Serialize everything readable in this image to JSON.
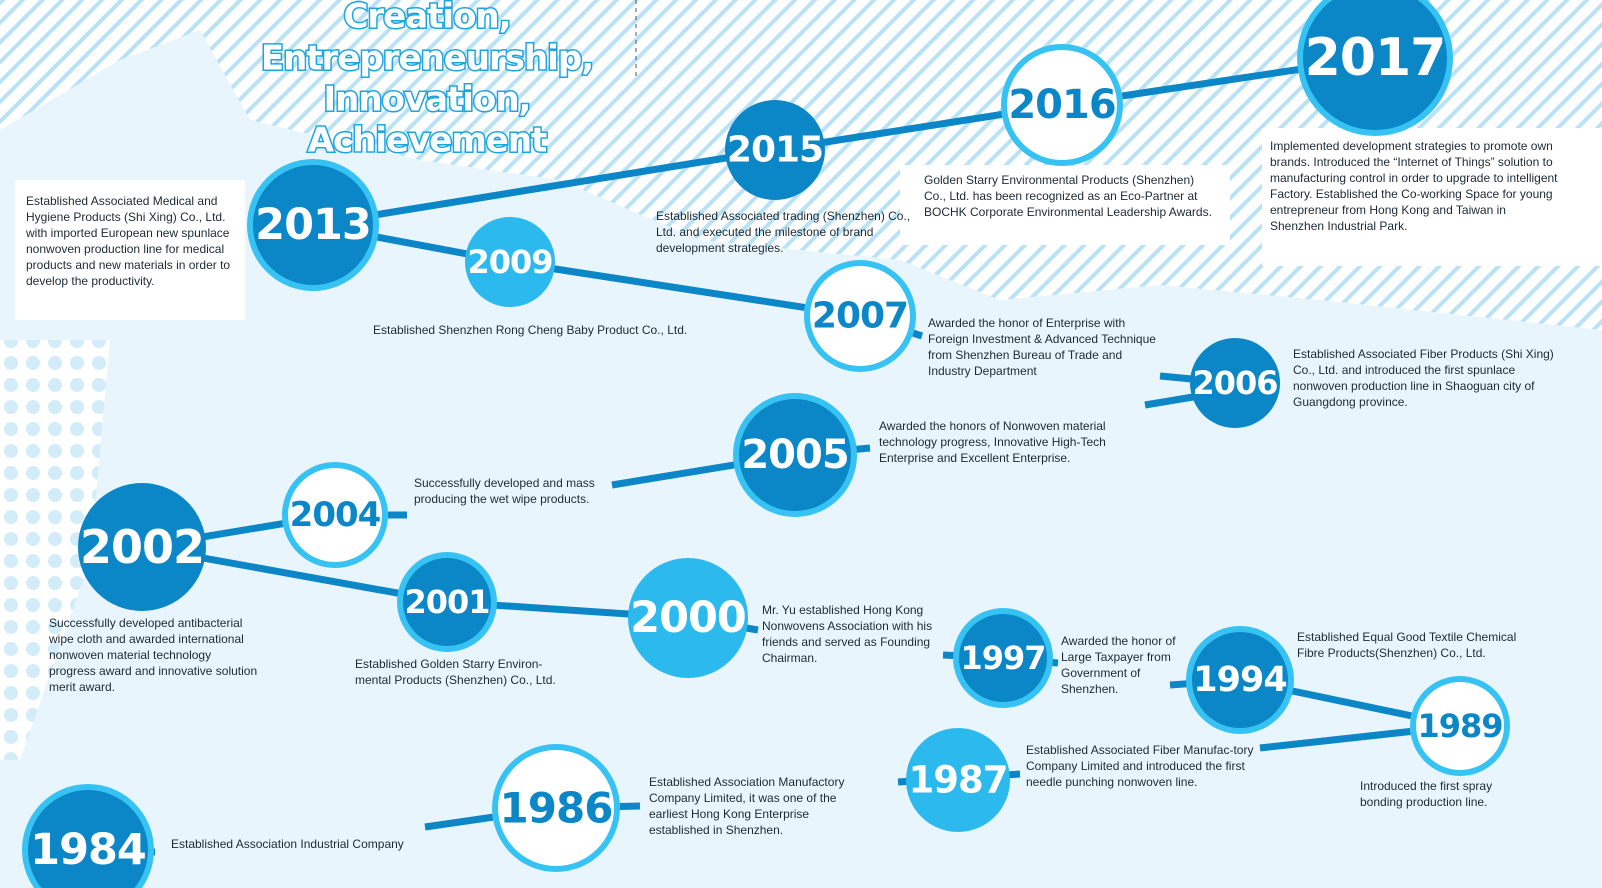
{
  "title": {
    "lines": [
      "Creation,",
      "Entrepreneurship,",
      "Innovation,",
      "Achievement"
    ]
  },
  "nodes": [
    {
      "year": "2017",
      "text": "Implemented development strategies to promote own brands. Introduced the “Internet of  Things” solution to manufacturing control in order to upgrade to intelligent Factory. Established the Co-working Space for young entrepreneur from Hong Kong and Taiwan in Shenzhen Industrial Park."
    },
    {
      "year": "2016",
      "text": "Golden Starry Environmental Products (Shenzhen) Co., Ltd.  has been recognized as an Eco-Partner at BOCHK Corporate Environmental Leadership Awards."
    },
    {
      "year": "2015",
      "text": "Established Associated trading (Shenzhen) Co., Ltd. and executed the milestone of brand development strategies."
    },
    {
      "year": "2013",
      "text": "Established Associated Medical and Hygiene Products (Shi Xing) Co., Ltd. with imported European new spunlace nonwoven production line for medical products and new materials in order to develop the productivity."
    },
    {
      "year": "2009",
      "text": "Established Shenzhen Rong Cheng Baby Product Co., Ltd."
    },
    {
      "year": "2007",
      "text": "Awarded the honor of Enterprise with Foreign Investment & Advanced Technique from Shenzhen Bureau of Trade and Industry Department"
    },
    {
      "year": "2006",
      "text": "Established Associated Fiber Products (Shi Xing) Co., Ltd. and introduced the first spunlace nonwoven production line in Shaoguan city of Guangdong province."
    },
    {
      "year": "2005",
      "text": "Awarded the honors of Nonwoven material technology progress, Innovative High-Tech Enterprise and Excellent Enterprise."
    },
    {
      "year": "2004",
      "text": "Successfully developed and mass producing the wet wipe products."
    },
    {
      "year": "2002",
      "text": "Successfully developed antibacterial wipe cloth and awarded international nonwoven material technology progress award and innovative solution merit award."
    },
    {
      "year": "2001",
      "text": "Established Golden Starry Environ-mental Products (Shenzhen) Co., Ltd."
    },
    {
      "year": "2000",
      "text": "Mr. Yu established Hong Kong Nonwovens Association with his friends and served as Founding Chairman."
    },
    {
      "year": "1997",
      "text": "Awarded the honor of Large Taxpayer from Government of Shenzhen."
    },
    {
      "year": "1994",
      "text": "Established Equal Good Textile Chemical Fibre Products(Shenzhen) Co., Ltd."
    },
    {
      "year": "1989",
      "text": "Introduced the first spray bonding production line."
    },
    {
      "year": "1987",
      "text": "Established Associated Fiber Manufac-tory Company Limited and introduced the first needle punching nonwoven line."
    },
    {
      "year": "1986",
      "text": "Established Association Manufactory Company Limited, it was one of the earliest Hong Kong Enterprise established in Shenzhen."
    },
    {
      "year": "1984",
      "text": "Established Association Industrial Company"
    }
  ]
}
